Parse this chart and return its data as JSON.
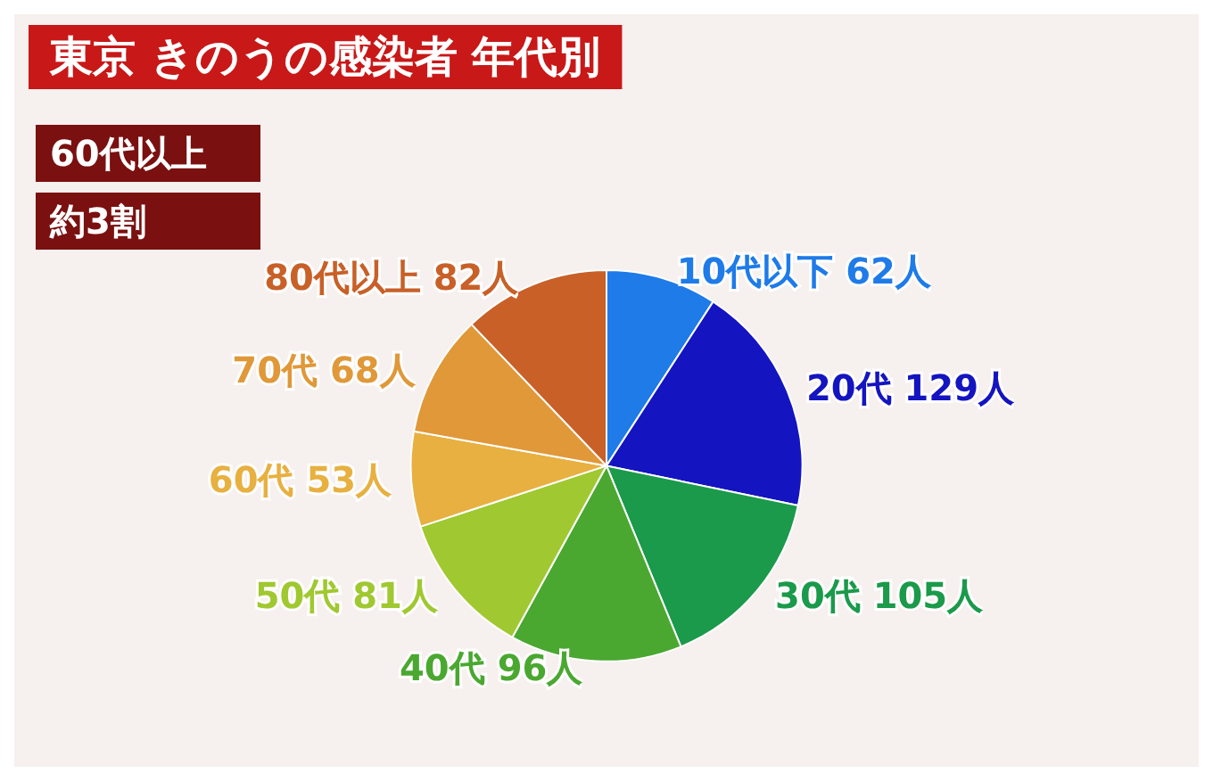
{
  "chart_data": {
    "type": "pie",
    "title": "東京 きのうの感染者 年代別",
    "categories": [
      "10代以下",
      "20代",
      "30代",
      "40代",
      "50代",
      "60代",
      "70代",
      "80代以上"
    ],
    "values": [
      62,
      129,
      105,
      96,
      81,
      53,
      68,
      82
    ],
    "value_labels": [
      "62人",
      "129人",
      "105人",
      "96人",
      "81人",
      "53人",
      "68人",
      "82人"
    ],
    "colors": [
      "#1e7be8",
      "#1414c0",
      "#1a9a4a",
      "#4aa830",
      "#a0c830",
      "#e8b040",
      "#e09838",
      "#c86028"
    ],
    "annotations": [
      "60代以上",
      "約3割"
    ],
    "legend": false
  }
}
